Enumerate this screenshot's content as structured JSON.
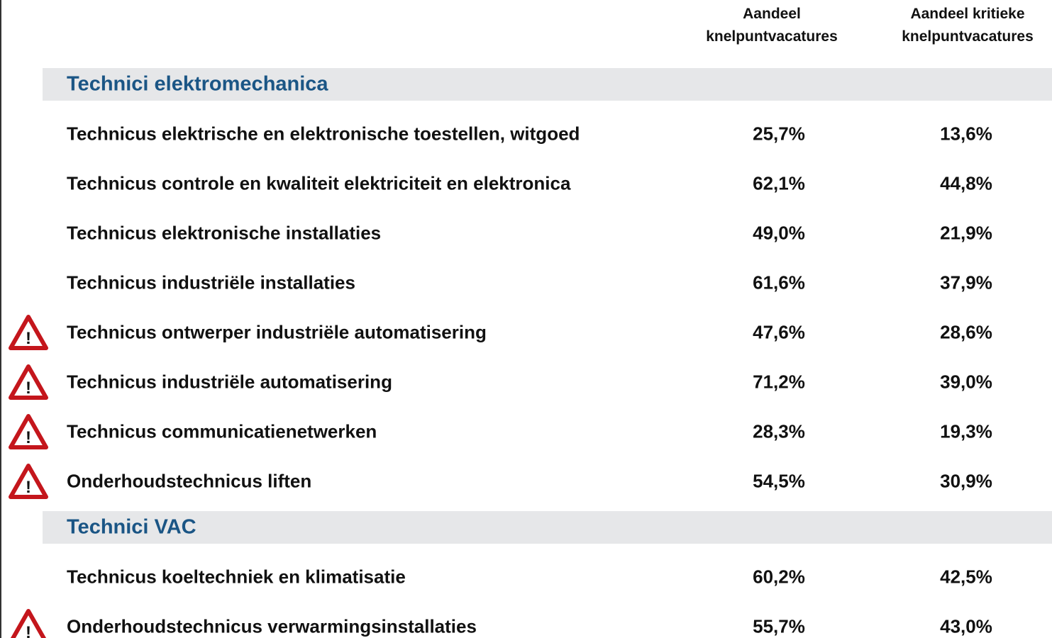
{
  "header": {
    "columns": [
      "Aandeel knelpuntvacatures",
      "Aandeel kritieke knelpuntvacatures"
    ]
  },
  "sections": [
    {
      "title": "Technici elektromechanica",
      "rows": [
        {
          "label": "Technicus elektrische en elektronische toestellen, witgoed",
          "values": [
            "25,7%",
            "13,6%"
          ],
          "warning": false
        },
        {
          "label": "Technicus controle en kwaliteit elektriciteit en elektronica",
          "values": [
            "62,1%",
            "44,8%"
          ],
          "warning": false
        },
        {
          "label": "Technicus elektronische installaties",
          "values": [
            "49,0%",
            "21,9%"
          ],
          "warning": false
        },
        {
          "label": "Technicus industriële installaties",
          "values": [
            "61,6%",
            "37,9%"
          ],
          "warning": false
        },
        {
          "label": "Technicus ontwerper industriële automatisering",
          "values": [
            "47,6%",
            "28,6%"
          ],
          "warning": true
        },
        {
          "label": "Technicus industriële automatisering",
          "values": [
            "71,2%",
            "39,0%"
          ],
          "warning": true
        },
        {
          "label": "Technicus communicatienetwerken",
          "values": [
            "28,3%",
            "19,3%"
          ],
          "warning": true
        },
        {
          "label": "Onderhoudstechnicus liften",
          "values": [
            "54,5%",
            "30,9%"
          ],
          "warning": true
        }
      ]
    },
    {
      "title": "Technici VAC",
      "rows": [
        {
          "label": "Technicus koeltechniek en klimatisatie",
          "values": [
            "60,2%",
            "42,5%"
          ],
          "warning": false
        },
        {
          "label": "Onderhoudstechnicus verwarmingsinstallaties",
          "values": [
            "55,7%",
            "43,0%"
          ],
          "warning": true
        }
      ]
    }
  ]
}
